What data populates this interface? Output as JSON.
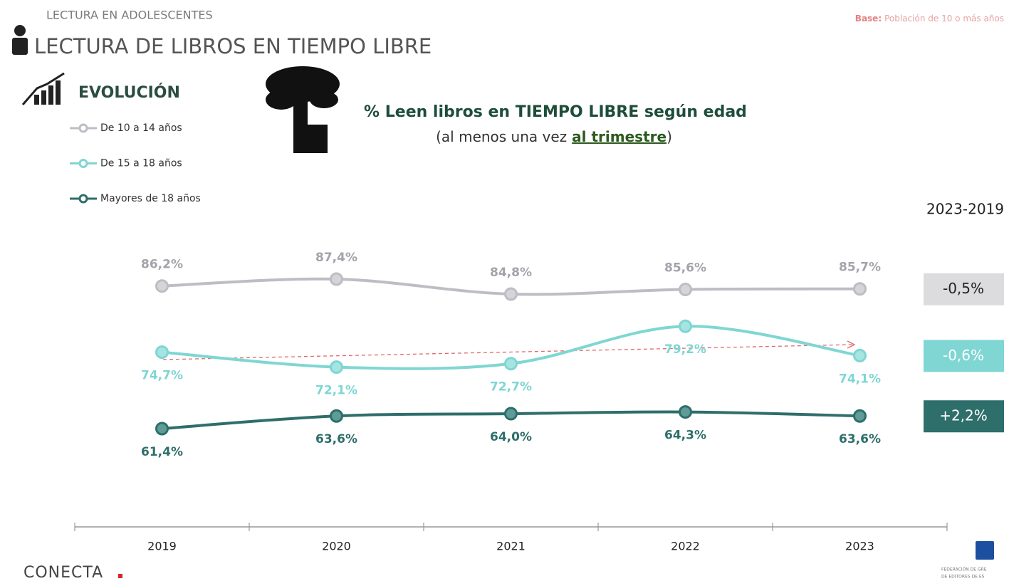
{
  "header": {
    "section": "LECTURA EN ADOLESCENTES",
    "title": "LECTURA DE LIBROS EN TIEMPO LIBRE",
    "base_label": "Base:",
    "base_text": "Población de 10 o más años"
  },
  "evolution_label": "EVOLUCIÓN",
  "chart_data": {
    "type": "line",
    "title": "% Leen libros en TIEMPO LIBRE según edad",
    "subtitle": [
      "(al menos una vez",
      "al trimestre",
      ")"
    ],
    "legend": "upper left",
    "categories": [
      "2019",
      "2020",
      "2021",
      "2022",
      "2023"
    ],
    "series": [
      {
        "name": "De 10 a 14 años",
        "color": "#bdbdc4",
        "values": [
          86.2,
          87.4,
          84.8,
          85.6,
          85.7
        ],
        "value_labels": [
          "86,2%",
          "87,4%",
          "84,8%",
          "85,6%",
          "85,7%"
        ]
      },
      {
        "name": "De 15 a 18 años",
        "color": "#7fd6d2",
        "values": [
          74.7,
          72.1,
          72.7,
          79.2,
          74.1
        ],
        "value_labels": [
          "74,7%",
          "72,1%",
          "72,7%",
          "79,2%",
          "74,1%"
        ]
      },
      {
        "name": "Mayores de 18 años",
        "color": "#2e6e6b",
        "values": [
          61.4,
          63.6,
          64.0,
          64.3,
          63.6
        ],
        "value_labels": [
          "61,4%",
          "63,6%",
          "64,0%",
          "64,3%",
          "63,6%"
        ]
      }
    ],
    "changes": {
      "title": "2023-2019",
      "labels": [
        "-0,5%",
        "-0,6%",
        "+2,2%"
      ]
    }
  },
  "footer": {
    "brand": "CONECTA",
    "partner": [
      "FEDERACIÓN DE GRE",
      "DE EDITORES DE ES"
    ]
  }
}
